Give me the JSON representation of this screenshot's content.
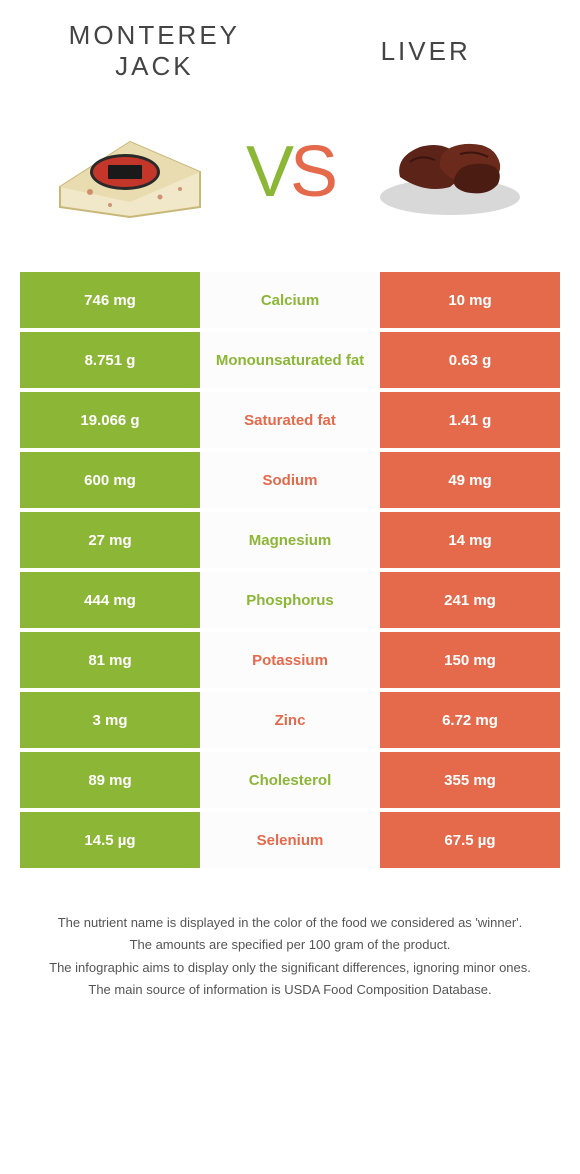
{
  "foods": {
    "left": {
      "name": "MONTEREY\nJACK",
      "color": "#8cb636"
    },
    "right": {
      "name": "LIVER",
      "color": "#e46a4b"
    }
  },
  "vs": {
    "v": "V",
    "s": "S"
  },
  "rows": [
    {
      "left": "746 mg",
      "label": "Calcium",
      "right": "10 mg",
      "winner": "left"
    },
    {
      "left": "8.751 g",
      "label": "Monounsaturated fat",
      "right": "0.63 g",
      "winner": "left"
    },
    {
      "left": "19.066 g",
      "label": "Saturated fat",
      "right": "1.41 g",
      "winner": "right"
    },
    {
      "left": "600 mg",
      "label": "Sodium",
      "right": "49 mg",
      "winner": "right"
    },
    {
      "left": "27 mg",
      "label": "Magnesium",
      "right": "14 mg",
      "winner": "left"
    },
    {
      "left": "444 mg",
      "label": "Phosphorus",
      "right": "241 mg",
      "winner": "left"
    },
    {
      "left": "81 mg",
      "label": "Potassium",
      "right": "150 mg",
      "winner": "right"
    },
    {
      "left": "3 mg",
      "label": "Zinc",
      "right": "6.72 mg",
      "winner": "right"
    },
    {
      "left": "89 mg",
      "label": "Cholesterol",
      "right": "355 mg",
      "winner": "left"
    },
    {
      "left": "14.5 µg",
      "label": "Selenium",
      "right": "67.5 µg",
      "winner": "right"
    }
  ],
  "footer": {
    "line1": "The nutrient name is displayed in the color of the food we considered as 'winner'.",
    "line2": "The amounts are specified per 100 gram of the product.",
    "line3": "The infographic aims to display only the significant differences, ignoring minor ones.",
    "line4": "The main source of information is USDA Food Composition Database."
  },
  "colors": {
    "green": "#8cb636",
    "orange": "#e46a4b",
    "bg": "#ffffff",
    "text": "#444444"
  }
}
